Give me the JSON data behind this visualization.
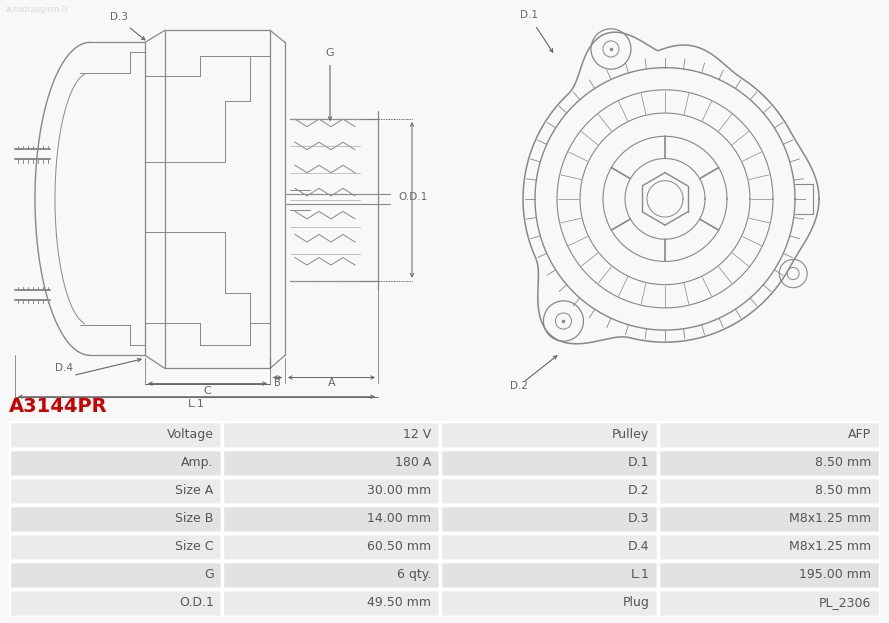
{
  "title": "A3144PR",
  "title_color": "#cc0000",
  "table_rows": [
    [
      "Voltage",
      "12 V",
      "Pulley",
      "AFP"
    ],
    [
      "Amp.",
      "180 A",
      "D.1",
      "8.50 mm"
    ],
    [
      "Size A",
      "30.00 mm",
      "D.2",
      "8.50 mm"
    ],
    [
      "Size B",
      "14.00 mm",
      "D.3",
      "M8x1.25 mm"
    ],
    [
      "Size C",
      "60.50 mm",
      "D.4",
      "M8x1.25 mm"
    ],
    [
      "G",
      "6 qty.",
      "L.1",
      "195.00 mm"
    ],
    [
      "O.D.1",
      "49.50 mm",
      "Plug",
      "PL_2306"
    ]
  ],
  "row_bg": [
    "#ebebeb",
    "#e2e2e2"
  ],
  "border_color": "#ffffff",
  "text_color": "#555555",
  "bg_color": "#f8f8f8",
  "line_color": "#888888",
  "dim_color": "#666666",
  "watermark": "autodraugiem.lv",
  "watermark_color": "#cccccc"
}
